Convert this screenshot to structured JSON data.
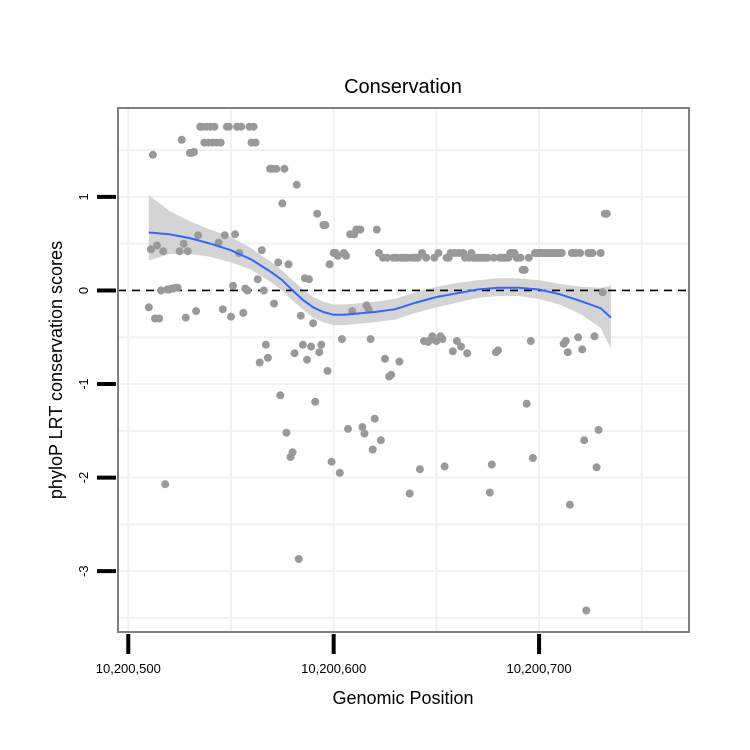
{
  "chart_data": {
    "type": "scatter",
    "title": "Conservation",
    "xlabel": "Genomic Position",
    "ylabel": "phyloP LRT conservation scores",
    "xlim": [
      10200495,
      10200773
    ],
    "ylim": [
      -3.65,
      1.95
    ],
    "x_ticks": [
      {
        "value": 10200500,
        "label": "10,200,500"
      },
      {
        "value": 10200600,
        "label": "10,200,600"
      },
      {
        "value": 10200700,
        "label": "10,200,700"
      }
    ],
    "y_ticks": [
      {
        "value": -3,
        "label": "-3"
      },
      {
        "value": -2,
        "label": "-2"
      },
      {
        "value": -1,
        "label": "-1"
      },
      {
        "value": 0,
        "label": "0"
      },
      {
        "value": 1,
        "label": "1"
      }
    ],
    "reference_line": {
      "y": 0,
      "style": "dashed"
    },
    "colors": {
      "points": "#999999",
      "smooth": "#3366ff",
      "band": "#cfcfcf",
      "border": "#7f7f7f",
      "grid": "#f1f1f1"
    },
    "points": [
      [
        10200510,
        -0.18
      ],
      [
        10200511,
        0.44
      ],
      [
        10200512,
        1.45
      ],
      [
        10200513,
        -0.3
      ],
      [
        10200514,
        0.48
      ],
      [
        10200515,
        -0.3
      ],
      [
        10200516,
        0.0
      ],
      [
        10200517,
        0.42
      ],
      [
        10200518,
        -2.07
      ],
      [
        10200519,
        0.01
      ],
      [
        10200520,
        0.01
      ],
      [
        10200521,
        0.02
      ],
      [
        10200522,
        0.02
      ],
      [
        10200523,
        0.03
      ],
      [
        10200524,
        0.03
      ],
      [
        10200525,
        0.42
      ],
      [
        10200526,
        1.61
      ],
      [
        10200527,
        0.5
      ],
      [
        10200528,
        -0.29
      ],
      [
        10200529,
        0.42
      ],
      [
        10200530,
        1.47
      ],
      [
        10200531,
        1.47
      ],
      [
        10200532,
        1.48
      ],
      [
        10200533,
        -0.22
      ],
      [
        10200534,
        0.59
      ],
      [
        10200535,
        1.75
      ],
      [
        10200536,
        1.75
      ],
      [
        10200537,
        1.58
      ],
      [
        10200538,
        1.75
      ],
      [
        10200539,
        1.58
      ],
      [
        10200540,
        1.75
      ],
      [
        10200541,
        1.58
      ],
      [
        10200542,
        1.75
      ],
      [
        10200543,
        1.58
      ],
      [
        10200544,
        0.51
      ],
      [
        10200545,
        1.58
      ],
      [
        10200546,
        -0.2
      ],
      [
        10200547,
        0.59
      ],
      [
        10200548,
        1.75
      ],
      [
        10200549,
        1.75
      ],
      [
        10200550,
        -0.28
      ],
      [
        10200551,
        0.05
      ],
      [
        10200552,
        0.6
      ],
      [
        10200553,
        1.75
      ],
      [
        10200554,
        0.4
      ],
      [
        10200555,
        1.75
      ],
      [
        10200556,
        -0.24
      ],
      [
        10200557,
        0.02
      ],
      [
        10200558,
        0.0
      ],
      [
        10200559,
        1.75
      ],
      [
        10200560,
        1.58
      ],
      [
        10200561,
        1.75
      ],
      [
        10200562,
        1.58
      ],
      [
        10200563,
        0.12
      ],
      [
        10200564,
        -0.77
      ],
      [
        10200565,
        0.43
      ],
      [
        10200566,
        0.0
      ],
      [
        10200567,
        -0.58
      ],
      [
        10200568,
        -0.72
      ],
      [
        10200569,
        1.3
      ],
      [
        10200570,
        1.3
      ],
      [
        10200571,
        -0.14
      ],
      [
        10200572,
        1.3
      ],
      [
        10200573,
        0.3
      ],
      [
        10200574,
        -1.12
      ],
      [
        10200575,
        0.93
      ],
      [
        10200576,
        1.3
      ],
      [
        10200577,
        -1.52
      ],
      [
        10200578,
        0.28
      ],
      [
        10200579,
        -1.78
      ],
      [
        10200580,
        -1.73
      ],
      [
        10200581,
        -0.67
      ],
      [
        10200582,
        1.13
      ],
      [
        10200583,
        -2.87
      ],
      [
        10200584,
        -0.27
      ],
      [
        10200585,
        -0.58
      ],
      [
        10200586,
        0.13
      ],
      [
        10200587,
        -0.74
      ],
      [
        10200588,
        0.12
      ],
      [
        10200589,
        -0.6
      ],
      [
        10200590,
        -0.35
      ],
      [
        10200591,
        -1.19
      ],
      [
        10200592,
        0.82
      ],
      [
        10200593,
        -0.66
      ],
      [
        10200594,
        -0.58
      ],
      [
        10200595,
        0.7
      ],
      [
        10200596,
        0.7
      ],
      [
        10200597,
        -0.86
      ],
      [
        10200598,
        0.28
      ],
      [
        10200599,
        -1.83
      ],
      [
        10200600,
        0.4
      ],
      [
        10200601,
        0.4
      ],
      [
        10200602,
        0.37
      ],
      [
        10200603,
        -1.95
      ],
      [
        10200604,
        -0.52
      ],
      [
        10200605,
        0.4
      ],
      [
        10200606,
        0.37
      ],
      [
        10200607,
        -1.48
      ],
      [
        10200608,
        0.6
      ],
      [
        10200609,
        -0.22
      ],
      [
        10200610,
        0.6
      ],
      [
        10200611,
        0.65
      ],
      [
        10200612,
        0.65
      ],
      [
        10200613,
        0.65
      ],
      [
        10200614,
        -1.46
      ],
      [
        10200615,
        -1.53
      ],
      [
        10200616,
        -0.16
      ],
      [
        10200617,
        -0.2
      ],
      [
        10200618,
        -0.52
      ],
      [
        10200619,
        -1.7
      ],
      [
        10200620,
        -1.37
      ],
      [
        10200621,
        0.65
      ],
      [
        10200622,
        0.4
      ],
      [
        10200623,
        -1.6
      ],
      [
        10200624,
        0.35
      ],
      [
        10200625,
        -0.73
      ],
      [
        10200626,
        0.35
      ],
      [
        10200627,
        -0.92
      ],
      [
        10200628,
        -0.9
      ],
      [
        10200629,
        0.35
      ],
      [
        10200630,
        0.35
      ],
      [
        10200631,
        0.35
      ],
      [
        10200632,
        -0.76
      ],
      [
        10200633,
        0.35
      ],
      [
        10200634,
        0.35
      ],
      [
        10200635,
        0.35
      ],
      [
        10200636,
        0.35
      ],
      [
        10200637,
        -2.17
      ],
      [
        10200638,
        0.35
      ],
      [
        10200639,
        0.35
      ],
      [
        10200640,
        0.35
      ],
      [
        10200641,
        0.35
      ],
      [
        10200642,
        -1.91
      ],
      [
        10200643,
        0.4
      ],
      [
        10200644,
        -0.54
      ],
      [
        10200645,
        0.35
      ],
      [
        10200646,
        -0.55
      ],
      [
        10200647,
        -0.53
      ],
      [
        10200648,
        -0.49
      ],
      [
        10200649,
        0.35
      ],
      [
        10200650,
        -0.54
      ],
      [
        10200651,
        0.4
      ],
      [
        10200652,
        -0.49
      ],
      [
        10200653,
        -0.52
      ],
      [
        10200654,
        -1.88
      ],
      [
        10200655,
        0.35
      ],
      [
        10200656,
        0.35
      ],
      [
        10200657,
        0.4
      ],
      [
        10200658,
        -0.65
      ],
      [
        10200659,
        0.4
      ],
      [
        10200660,
        -0.54
      ],
      [
        10200661,
        0.4
      ],
      [
        10200662,
        -0.6
      ],
      [
        10200663,
        0.4
      ],
      [
        10200664,
        0.35
      ],
      [
        10200665,
        -0.67
      ],
      [
        10200666,
        0.35
      ],
      [
        10200667,
        0.4
      ],
      [
        10200668,
        0.35
      ],
      [
        10200669,
        0.35
      ],
      [
        10200670,
        0.35
      ],
      [
        10200671,
        0.35
      ],
      [
        10200672,
        0.35
      ],
      [
        10200673,
        0.35
      ],
      [
        10200674,
        0.35
      ],
      [
        10200675,
        0.35
      ],
      [
        10200676,
        -2.16
      ],
      [
        10200677,
        -1.86
      ],
      [
        10200678,
        0.35
      ],
      [
        10200679,
        -0.66
      ],
      [
        10200680,
        -0.64
      ],
      [
        10200681,
        0.35
      ],
      [
        10200682,
        0.35
      ],
      [
        10200683,
        0.35
      ],
      [
        10200684,
        0.35
      ],
      [
        10200685,
        0.35
      ],
      [
        10200686,
        0.4
      ],
      [
        10200687,
        0.4
      ],
      [
        10200688,
        0.4
      ],
      [
        10200689,
        0.35
      ],
      [
        10200690,
        0.35
      ],
      [
        10200691,
        0.35
      ],
      [
        10200692,
        0.22
      ],
      [
        10200693,
        0.22
      ],
      [
        10200694,
        -1.21
      ],
      [
        10200695,
        0.35
      ],
      [
        10200696,
        -0.54
      ],
      [
        10200697,
        -1.79
      ],
      [
        10200698,
        0.4
      ],
      [
        10200699,
        0.4
      ],
      [
        10200700,
        0.4
      ],
      [
        10200701,
        0.4
      ],
      [
        10200702,
        0.4
      ],
      [
        10200703,
        0.4
      ],
      [
        10200704,
        0.4
      ],
      [
        10200705,
        0.4
      ],
      [
        10200706,
        0.4
      ],
      [
        10200707,
        0.4
      ],
      [
        10200708,
        0.4
      ],
      [
        10200709,
        0.4
      ],
      [
        10200710,
        0.4
      ],
      [
        10200711,
        0.4
      ],
      [
        10200712,
        -0.57
      ],
      [
        10200713,
        -0.54
      ],
      [
        10200714,
        -0.66
      ],
      [
        10200715,
        -2.29
      ],
      [
        10200716,
        0.4
      ],
      [
        10200717,
        0.4
      ],
      [
        10200718,
        0.4
      ],
      [
        10200719,
        -0.5
      ],
      [
        10200720,
        0.4
      ],
      [
        10200721,
        -0.63
      ],
      [
        10200722,
        -1.6
      ],
      [
        10200723,
        -3.42
      ],
      [
        10200724,
        0.4
      ],
      [
        10200725,
        0.4
      ],
      [
        10200726,
        0.4
      ],
      [
        10200727,
        -0.49
      ],
      [
        10200728,
        -1.89
      ],
      [
        10200729,
        -1.49
      ],
      [
        10200730,
        0.4
      ],
      [
        10200731,
        -0.02
      ],
      [
        10200732,
        0.82
      ],
      [
        10200733,
        0.82
      ]
    ],
    "smooth": {
      "x": [
        10200510,
        10200520,
        10200530,
        10200540,
        10200550,
        10200560,
        10200565,
        10200570,
        10200575,
        10200580,
        10200585,
        10200590,
        10200595,
        10200600,
        10200605,
        10200610,
        10200615,
        10200620,
        10200630,
        10200640,
        10200650,
        10200660,
        10200670,
        10200680,
        10200690,
        10200700,
        10200710,
        10200720,
        10200730,
        10200735
      ],
      "y": [
        0.62,
        0.6,
        0.56,
        0.5,
        0.43,
        0.33,
        0.26,
        0.19,
        0.11,
        0.0,
        -0.1,
        -0.18,
        -0.23,
        -0.26,
        -0.26,
        -0.25,
        -0.24,
        -0.23,
        -0.2,
        -0.13,
        -0.07,
        -0.03,
        0.01,
        0.03,
        0.03,
        0.01,
        -0.04,
        -0.11,
        -0.19,
        -0.29
      ],
      "lower": [
        0.32,
        0.39,
        0.39,
        0.36,
        0.3,
        0.22,
        0.15,
        0.08,
        0.0,
        -0.11,
        -0.2,
        -0.29,
        -0.34,
        -0.37,
        -0.37,
        -0.36,
        -0.35,
        -0.34,
        -0.31,
        -0.24,
        -0.18,
        -0.13,
        -0.08,
        -0.06,
        -0.06,
        -0.09,
        -0.15,
        -0.25,
        -0.4,
        -0.62
      ],
      "upper": [
        1.02,
        0.85,
        0.74,
        0.65,
        0.57,
        0.45,
        0.37,
        0.3,
        0.21,
        0.11,
        0.01,
        -0.07,
        -0.12,
        -0.15,
        -0.15,
        -0.14,
        -0.13,
        -0.12,
        -0.09,
        -0.02,
        0.04,
        0.08,
        0.11,
        0.13,
        0.13,
        0.11,
        0.07,
        0.04,
        0.03,
        0.05
      ]
    }
  }
}
